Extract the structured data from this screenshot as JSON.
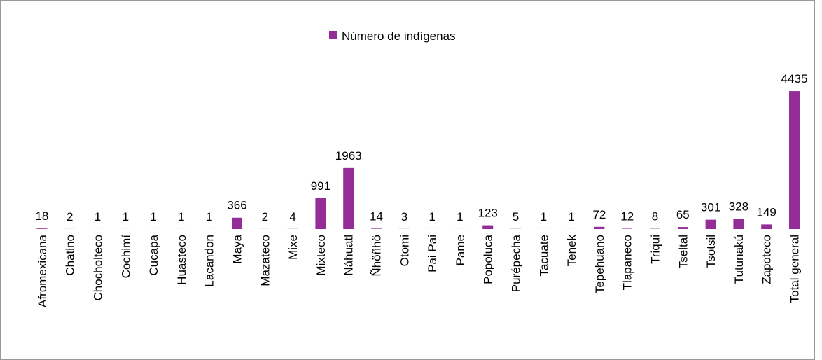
{
  "chart_data": {
    "type": "bar",
    "categories": [
      "Afromexicana",
      "Chatino",
      "Chocholteco",
      "Cochimí",
      "Cucapa",
      "Huasteco",
      "Lacandon",
      "Maya",
      "Mazateco",
      "Mixe",
      "Mixteco",
      "Náhuatl",
      "Ñhöñhö",
      "Otomi",
      "Pai Pai",
      "Pame",
      "Popoluca",
      "Purépecha",
      "Tacuate",
      "Tenek",
      "Tepehuano",
      "Tlapaneco",
      "Triqui",
      "Tseltal",
      "Tsotsil",
      "Tutunakú",
      "Zapoteco",
      "Total general"
    ],
    "series": [
      {
        "name": "Número de indígenas",
        "color": "#952d98",
        "values": [
          18,
          2,
          1,
          1,
          1,
          1,
          1,
          366,
          2,
          4,
          991,
          1963,
          14,
          3,
          1,
          1,
          123,
          5,
          1,
          1,
          72,
          12,
          8,
          65,
          301,
          328,
          149,
          4435
        ]
      }
    ],
    "ylim": [
      0,
      5000
    ],
    "legend": "top"
  }
}
